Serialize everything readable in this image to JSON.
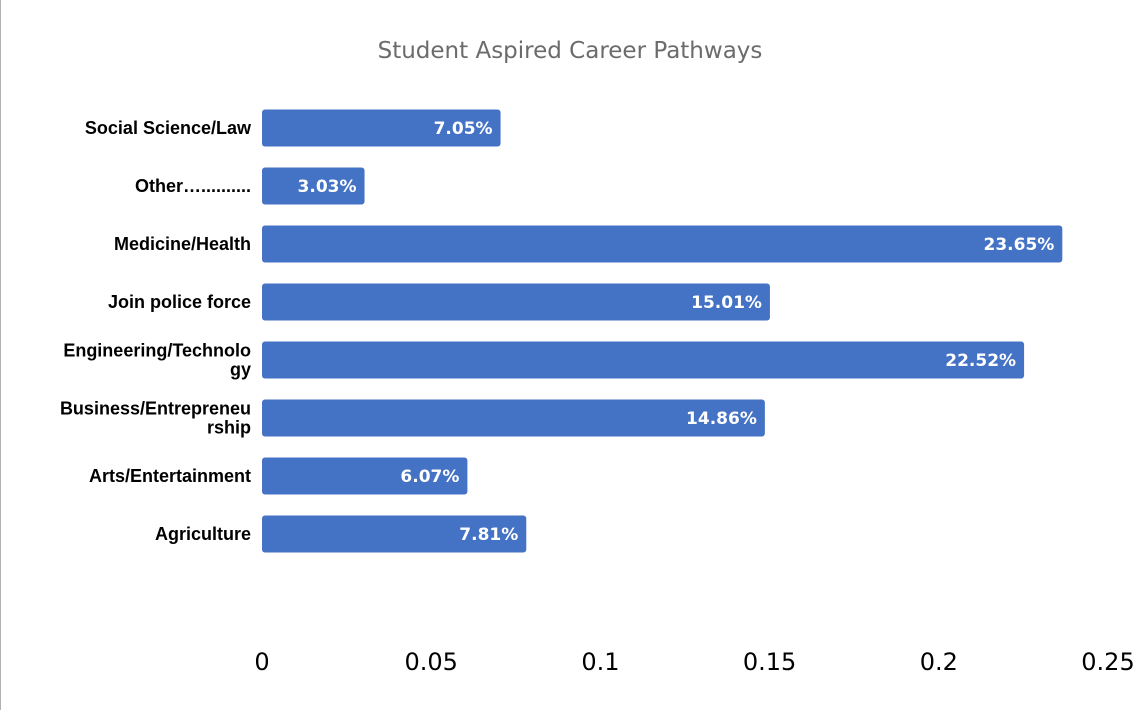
{
  "chart_data": {
    "type": "bar",
    "orientation": "horizontal",
    "title": "Student Aspired Career Pathways",
    "xlabel": "",
    "ylabel": "",
    "categories": [
      "Social Science/Law",
      "Other….........",
      "Medicine/Health",
      "Join police force",
      "Engineering/Technology",
      "Business/Entrepreneurship",
      "Arts/Entertainment",
      "Agriculture"
    ],
    "category_display_lines": [
      [
        "Social Science/Law"
      ],
      [
        "Other….........."
      ],
      [
        "Medicine/Health"
      ],
      [
        "Join police force"
      ],
      [
        "Engineering/Technolo",
        "gy"
      ],
      [
        "Business/Entrepreneu",
        "rship"
      ],
      [
        "Arts/Entertainment"
      ],
      [
        "Agriculture"
      ]
    ],
    "values": [
      0.0705,
      0.0303,
      0.2365,
      0.1501,
      0.2252,
      0.1486,
      0.0607,
      0.0781
    ],
    "data_labels": [
      "7.05%",
      "3.03%",
      "23.65%",
      "15.01%",
      "22.52%",
      "14.86%",
      "6.07%",
      "7.81%"
    ],
    "xlim": [
      0,
      0.25
    ],
    "x_ticks": [
      "0",
      "0.05",
      "0.1",
      "0.15",
      "0.2",
      "0.25"
    ],
    "grid": false,
    "legend": "none",
    "bar_color": "#4472C4"
  }
}
